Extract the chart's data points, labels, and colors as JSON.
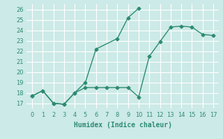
{
  "line1_x": [
    0,
    1,
    2,
    3,
    4,
    5,
    6,
    8,
    9,
    10
  ],
  "line1_y": [
    17.7,
    18.2,
    17.0,
    16.9,
    18.0,
    19.0,
    22.2,
    23.2,
    25.2,
    26.1
  ],
  "line2_x": [
    0,
    1,
    2,
    3,
    4,
    5,
    6,
    7,
    8,
    9,
    10,
    11,
    12,
    13,
    14,
    15,
    16,
    17
  ],
  "line2_y": [
    17.7,
    18.2,
    17.0,
    16.9,
    18.0,
    18.5,
    18.5,
    18.5,
    18.5,
    18.5,
    17.6,
    21.5,
    22.9,
    24.3,
    24.4,
    24.3,
    23.6,
    23.5
  ],
  "color": "#2e8b72",
  "bg_color": "#cceae7",
  "grid_color": "#ffffff",
  "xlabel": "Humidex (Indice chaleur)",
  "xlim": [
    -0.5,
    17.5
  ],
  "ylim": [
    16.5,
    26.5
  ],
  "yticks": [
    17,
    18,
    19,
    20,
    21,
    22,
    23,
    24,
    25,
    26
  ],
  "xticks": [
    0,
    1,
    2,
    3,
    4,
    5,
    6,
    7,
    8,
    9,
    10,
    11,
    12,
    13,
    14,
    15,
    16,
    17
  ],
  "marker": "D",
  "markersize": 2.5,
  "linewidth": 1.0,
  "xlabel_fontsize": 7,
  "tick_fontsize": 6
}
